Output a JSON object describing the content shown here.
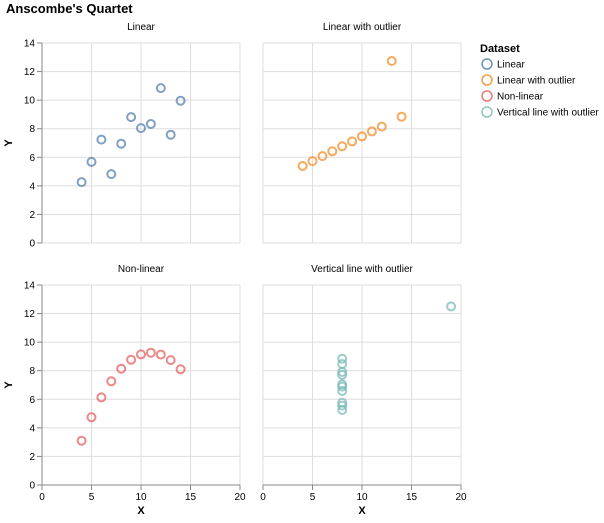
{
  "chart_data": {
    "type": "scatter",
    "title": "Anscombe's Quartet",
    "xlabel": "X",
    "ylabel": "Y",
    "xlim": [
      0,
      20
    ],
    "ylim": [
      0,
      14
    ],
    "x_ticks": [
      0,
      5,
      10,
      15,
      20
    ],
    "y_ticks": [
      0,
      2,
      4,
      6,
      8,
      10,
      12,
      14
    ],
    "grid": true,
    "legend": {
      "title": "Dataset",
      "placement": "right"
    },
    "series": [
      {
        "name": "Linear",
        "color": "#4c78a8",
        "x": [
          10,
          8,
          13,
          9,
          11,
          14,
          6,
          4,
          12,
          7,
          5
        ],
        "y": [
          8.04,
          6.95,
          7.58,
          8.81,
          8.33,
          9.96,
          7.24,
          4.26,
          10.84,
          4.82,
          5.68
        ]
      },
      {
        "name": "Linear with outlier",
        "color": "#f58518",
        "x": [
          10,
          8,
          13,
          9,
          11,
          14,
          6,
          4,
          12,
          7,
          5
        ],
        "y": [
          7.46,
          6.77,
          12.74,
          7.11,
          7.81,
          8.84,
          6.08,
          5.39,
          8.15,
          6.42,
          5.73
        ]
      },
      {
        "name": "Non-linear",
        "color": "#e45756",
        "x": [
          10,
          8,
          13,
          9,
          11,
          14,
          6,
          4,
          12,
          7,
          5
        ],
        "y": [
          9.14,
          8.14,
          8.74,
          8.77,
          9.26,
          8.1,
          6.13,
          3.1,
          9.13,
          7.26,
          4.74
        ]
      },
      {
        "name": "Vertical line with outlier",
        "color": "#72b7b2",
        "x": [
          8,
          8,
          8,
          8,
          8,
          8,
          8,
          19,
          8,
          8,
          8
        ],
        "y": [
          6.58,
          5.76,
          7.71,
          8.84,
          8.47,
          7.04,
          5.25,
          12.5,
          5.56,
          7.91,
          6.89
        ]
      }
    ]
  }
}
